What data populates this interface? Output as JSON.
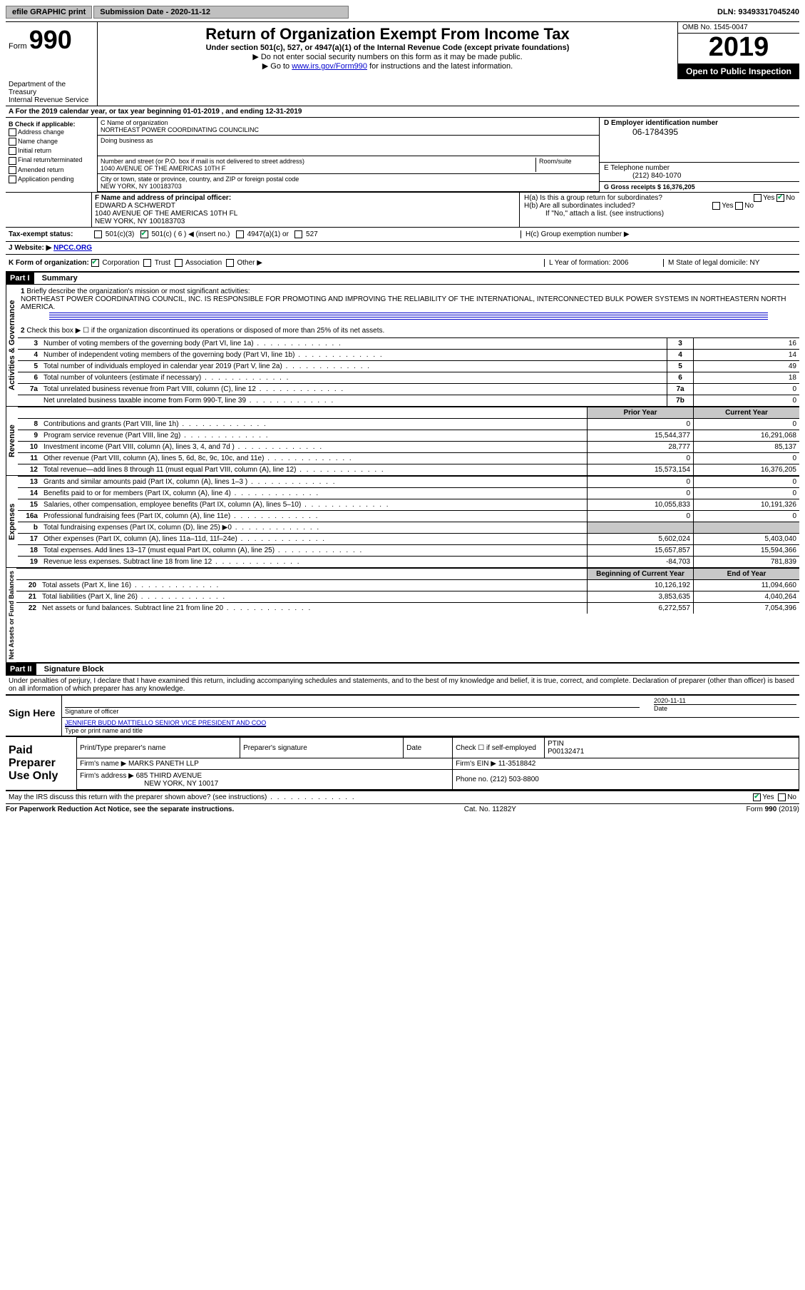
{
  "topbar": {
    "efile": "efile GRAPHIC print",
    "submission_label": "Submission Date - 2020-11-12",
    "dln": "DLN: 93493317045240"
  },
  "header": {
    "form_label": "Form",
    "form_number": "990",
    "title": "Return of Organization Exempt From Income Tax",
    "subtitle": "Under section 501(c), 527, or 4947(a)(1) of the Internal Revenue Code (except private foundations)",
    "note1": "Do not enter social security numbers on this form as it may be made public.",
    "note2_prefix": "Go to ",
    "note2_link": "www.irs.gov/Form990",
    "note2_suffix": " for instructions and the latest information.",
    "dept1": "Department of the Treasury",
    "dept2": "Internal Revenue Service",
    "omb": "OMB No. 1545-0047",
    "year": "2019",
    "inspection": "Open to Public Inspection"
  },
  "lineA": "For the 2019 calendar year, or tax year beginning 01-01-2019     , and ending 12-31-2019",
  "sectionB": {
    "label": "B Check if applicable:",
    "opts": [
      "Address change",
      "Name change",
      "Initial return",
      "Final return/terminated",
      "Amended return",
      "Application pending"
    ]
  },
  "entity": {
    "c_label": "C Name of organization",
    "name": "NORTHEAST POWER COORDINATING COUNCILINC",
    "dba_label": "Doing business as",
    "addr_label": "Number and street (or P.O. box if mail is not delivered to street address)",
    "suite_label": "Room/suite",
    "addr": "1040 AVENUE OF THE AMERICAS 10TH F",
    "city_label": "City or town, state or province, country, and ZIP or foreign postal code",
    "city": "NEW YORK, NY  100183703",
    "f_label": "F  Name and address of principal officer:",
    "officer": "EDWARD A SCHWERDT",
    "officer_addr": "1040 AVENUE OF THE AMERICAS 10TH FL",
    "officer_city": "NEW YORK, NY  100183703"
  },
  "right": {
    "d_label": "D Employer identification number",
    "ein": "06-1784395",
    "e_label": "E Telephone number",
    "phone": "(212) 840-1070",
    "g_label": "G Gross receipts $ 16,376,205",
    "ha": "H(a)  Is this a group return for subordinates?",
    "hb": "H(b)  Are all subordinates included?",
    "hb_note": "If \"No,\" attach a list. (see instructions)",
    "hc": "H(c)  Group exemption number ▶",
    "yes": "Yes",
    "no": "No"
  },
  "status": {
    "i_label": "Tax-exempt status:",
    "opts": [
      "501(c)(3)",
      "501(c) ( 6 ) ◀ (insert no.)",
      "4947(a)(1) or",
      "527"
    ],
    "j_label": "Website: ▶",
    "website": "NPCC.ORG"
  },
  "lineK": {
    "label": "K Form of organization:",
    "opts": [
      "Corporation",
      "Trust",
      "Association",
      "Other ▶"
    ],
    "l_label": "L Year of formation: 2006",
    "m_label": "M State of legal domicile: NY"
  },
  "part1": {
    "bar": "Part I",
    "title": "Summary",
    "line1_label": "Briefly describe the organization's mission or most significant activities:",
    "mission": "NORTHEAST POWER COORDINATING COUNCIL, INC. IS RESPONSIBLE FOR PROMOTING AND IMPROVING THE RELIABILITY OF THE INTERNATIONAL, INTERCONNECTED BULK POWER SYSTEMS IN NORTHEASTERN NORTH AMERICA.",
    "line2": "Check this box ▶ ☐  if the organization discontinued its operations or disposed of more than 25% of its net assets."
  },
  "governance": [
    {
      "n": "3",
      "t": "Number of voting members of the governing body (Part VI, line 1a)",
      "b": "3",
      "v": "16"
    },
    {
      "n": "4",
      "t": "Number of independent voting members of the governing body (Part VI, line 1b)",
      "b": "4",
      "v": "14"
    },
    {
      "n": "5",
      "t": "Total number of individuals employed in calendar year 2019 (Part V, line 2a)",
      "b": "5",
      "v": "49"
    },
    {
      "n": "6",
      "t": "Total number of volunteers (estimate if necessary)",
      "b": "6",
      "v": "18"
    },
    {
      "n": "7a",
      "t": "Total unrelated business revenue from Part VIII, column (C), line 12",
      "b": "7a",
      "v": "0"
    },
    {
      "n": "",
      "t": "Net unrelated business taxable income from Form 990-T, line 39",
      "b": "7b",
      "v": "0"
    }
  ],
  "rev_hdr": {
    "prior": "Prior Year",
    "current": "Current Year"
  },
  "revenue": [
    {
      "n": "8",
      "t": "Contributions and grants (Part VIII, line 1h)",
      "p": "0",
      "c": "0"
    },
    {
      "n": "9",
      "t": "Program service revenue (Part VIII, line 2g)",
      "p": "15,544,377",
      "c": "16,291,068"
    },
    {
      "n": "10",
      "t": "Investment income (Part VIII, column (A), lines 3, 4, and 7d )",
      "p": "28,777",
      "c": "85,137"
    },
    {
      "n": "11",
      "t": "Other revenue (Part VIII, column (A), lines 5, 6d, 8c, 9c, 10c, and 11e)",
      "p": "0",
      "c": "0"
    },
    {
      "n": "12",
      "t": "Total revenue—add lines 8 through 11 (must equal Part VIII, column (A), line 12)",
      "p": "15,573,154",
      "c": "16,376,205"
    }
  ],
  "expenses": [
    {
      "n": "13",
      "t": "Grants and similar amounts paid (Part IX, column (A), lines 1–3 )",
      "p": "0",
      "c": "0"
    },
    {
      "n": "14",
      "t": "Benefits paid to or for members (Part IX, column (A), line 4)",
      "p": "0",
      "c": "0"
    },
    {
      "n": "15",
      "t": "Salaries, other compensation, employee benefits (Part IX, column (A), lines 5–10)",
      "p": "10,055,833",
      "c": "10,191,326"
    },
    {
      "n": "16a",
      "t": "Professional fundraising fees (Part IX, column (A), line 11e)",
      "p": "0",
      "c": "0"
    },
    {
      "n": "b",
      "t": "Total fundraising expenses (Part IX, column (D), line 25) ▶0",
      "p": "",
      "c": "",
      "grey": true
    },
    {
      "n": "17",
      "t": "Other expenses (Part IX, column (A), lines 11a–11d, 11f–24e)",
      "p": "5,602,024",
      "c": "5,403,040"
    },
    {
      "n": "18",
      "t": "Total expenses. Add lines 13–17 (must equal Part IX, column (A), line 25)",
      "p": "15,657,857",
      "c": "15,594,366"
    },
    {
      "n": "19",
      "t": "Revenue less expenses. Subtract line 18 from line 12",
      "p": "-84,703",
      "c": "781,839"
    }
  ],
  "na_hdr": {
    "beg": "Beginning of Current Year",
    "end": "End of Year"
  },
  "netassets": [
    {
      "n": "20",
      "t": "Total assets (Part X, line 16)",
      "p": "10,126,192",
      "c": "11,094,660"
    },
    {
      "n": "21",
      "t": "Total liabilities (Part X, line 26)",
      "p": "3,853,635",
      "c": "4,040,264"
    },
    {
      "n": "22",
      "t": "Net assets or fund balances. Subtract line 21 from line 20",
      "p": "6,272,557",
      "c": "7,054,396"
    }
  ],
  "vtabs": {
    "gov": "Activities & Governance",
    "rev": "Revenue",
    "exp": "Expenses",
    "na": "Net Assets or Fund Balances"
  },
  "part2": {
    "bar": "Part II",
    "title": "Signature Block",
    "decl": "Under penalties of perjury, I declare that I have examined this return, including accompanying schedules and statements, and to the best of my knowledge and belief, it is true, correct, and complete. Declaration of preparer (other than officer) is based on all information of which preparer has any knowledge."
  },
  "sign": {
    "here": "Sign Here",
    "sig_label": "Signature of officer",
    "date_label": "Date",
    "date": "2020-11-11",
    "name": "JENNIFER BUDD MATTIELLO  SENIOR VICE PRESIDENT AND COO",
    "name_label": "Type or print name and title"
  },
  "paid": {
    "label": "Paid Preparer Use Only",
    "h1": "Print/Type preparer's name",
    "h2": "Preparer's signature",
    "h3": "Date",
    "h4": "Check ☐ if self-employed",
    "ptin_label": "PTIN",
    "ptin": "P00132471",
    "firm_label": "Firm's name    ▶",
    "firm": "MARKS PANETH LLP",
    "ein_label": "Firm's EIN ▶",
    "ein": "11-3518842",
    "addr_label": "Firm's address ▶",
    "addr": "685 THIRD AVENUE",
    "city": "NEW YORK, NY  10017",
    "phone_label": "Phone no.",
    "phone": "(212) 503-8800"
  },
  "discuss": "May the IRS discuss this return with the preparer shown above? (see instructions)",
  "footer": {
    "left": "For Paperwork Reduction Act Notice, see the separate instructions.",
    "mid": "Cat. No. 11282Y",
    "right": "Form 990 (2019)"
  }
}
